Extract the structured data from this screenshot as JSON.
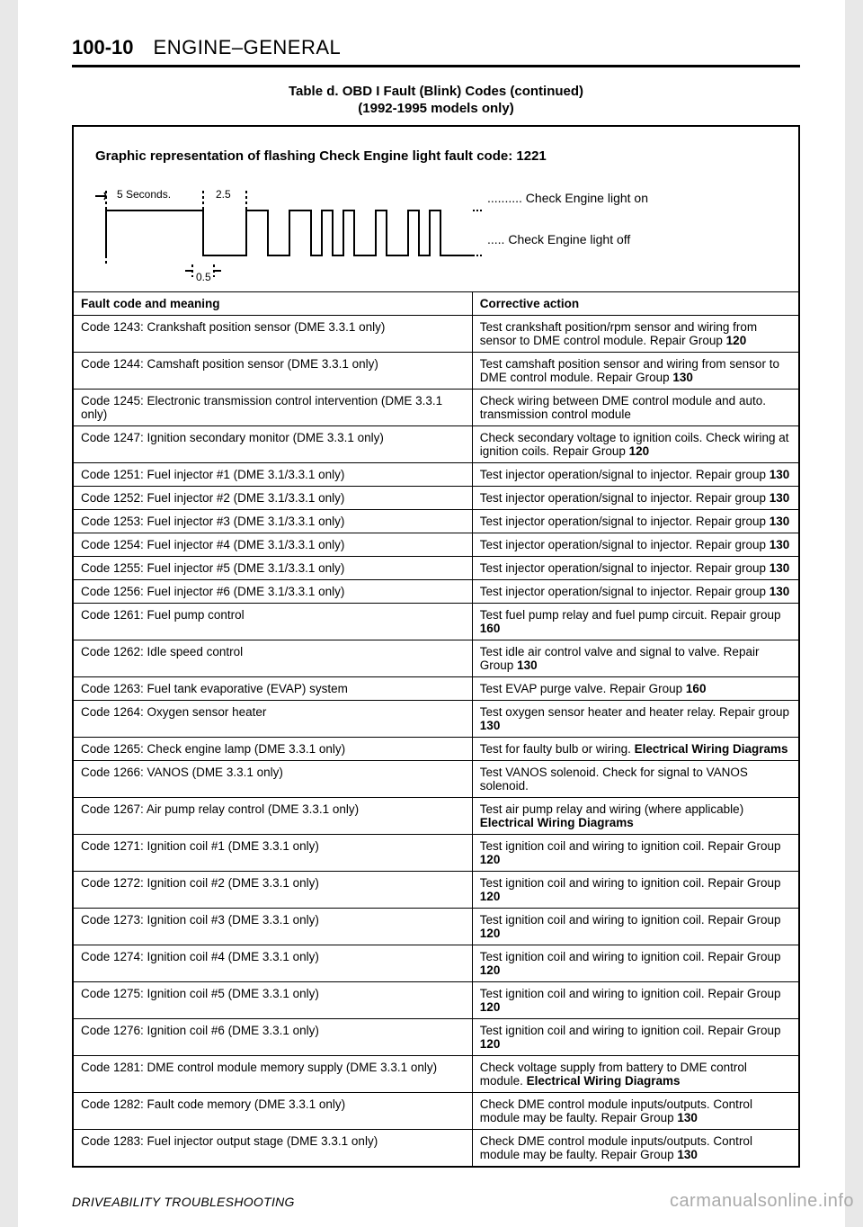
{
  "header": {
    "page_number": "100-10",
    "section": "ENGINE–GENERAL"
  },
  "table_header": {
    "title": "Table d. OBD I Fault (Blink) Codes (continued)",
    "subtitle": "(1992-1995 models only)"
  },
  "graphic": {
    "title": "Graphic representation of flashing Check Engine light fault code: 1221",
    "label_5s": "5 Seconds.",
    "label_2_5": "2.5",
    "label_0_5": "0.5",
    "legend_on": "Check Engine light on",
    "legend_off": "Check Engine light off"
  },
  "columns": {
    "fault": "Fault code and meaning",
    "action": "Corrective action"
  },
  "rows": [
    {
      "fault": "Code 1243: Crankshaft position sensor (DME 3.3.1 only)",
      "action": "Test crankshaft position/rpm sensor and wiring from sensor to DME control module. Repair Group <b>120</b>"
    },
    {
      "fault": "Code 1244: Camshaft position sensor (DME 3.3.1 only)",
      "action": "Test camshaft position sensor and wiring from sensor to DME control module. Repair Group <b>130</b>"
    },
    {
      "fault": "Code 1245: Electronic transmission control intervention (DME 3.3.1 only)",
      "action": "Check wiring between DME control module and auto. transmission control module"
    },
    {
      "fault": "Code 1247: Ignition secondary monitor (DME 3.3.1 only)",
      "action": "Check secondary voltage to ignition coils. Check wiring at ignition coils. Repair Group <b>120</b>"
    },
    {
      "fault": "Code 1251: Fuel injector #1 (DME 3.1/3.3.1 only)",
      "action": "Test injector operation/signal to injector. Repair group <b>130</b>"
    },
    {
      "fault": "Code 1252: Fuel injector #2 (DME 3.1/3.3.1 only)",
      "action": "Test injector operation/signal to injector. Repair group <b>130</b>"
    },
    {
      "fault": "Code 1253: Fuel injector #3 (DME 3.1/3.3.1 only)",
      "action": "Test injector operation/signal to injector. Repair group <b>130</b>"
    },
    {
      "fault": "Code 1254: Fuel injector #4 (DME 3.1/3.3.1 only)",
      "action": "Test injector operation/signal to injector. Repair group <b>130</b>"
    },
    {
      "fault": "Code 1255: Fuel injector #5 (DME 3.1/3.3.1 only)",
      "action": "Test injector operation/signal to injector. Repair group <b>130</b>"
    },
    {
      "fault": "Code 1256: Fuel injector #6 (DME 3.1/3.3.1 only)",
      "action": "Test injector operation/signal to injector. Repair group <b>130</b>"
    },
    {
      "fault": "Code 1261: Fuel pump control",
      "action": "Test fuel pump relay and fuel pump circuit. Repair group <b>160</b>"
    },
    {
      "fault": "Code 1262: Idle speed control",
      "action": "Test idle air control valve and signal to valve. Repair Group <b>130</b>"
    },
    {
      "fault": "Code 1263: Fuel tank evaporative (EVAP) system",
      "action": "Test EVAP purge valve. Repair Group <b>160</b>"
    },
    {
      "fault": "Code 1264: Oxygen sensor heater",
      "action": "Test oxygen sensor heater and heater relay. Repair group <b>130</b>"
    },
    {
      "fault": "Code 1265: Check engine lamp (DME 3.3.1 only)",
      "action": "Test for faulty bulb or wiring. <b>Electrical Wiring Diagrams</b>"
    },
    {
      "fault": "Code 1266: VANOS (DME 3.3.1 only)",
      "action": "Test VANOS solenoid. Check for signal to VANOS solenoid."
    },
    {
      "fault": "Code 1267: Air pump relay control (DME 3.3.1 only)",
      "action": "Test air pump relay and wiring (where applicable) <b>Electrical Wiring Diagrams</b>"
    },
    {
      "fault": "Code 1271: Ignition coil #1 (DME 3.3.1 only)",
      "action": "Test ignition coil and wiring to ignition coil. Repair Group <b>120</b>"
    },
    {
      "fault": "Code 1272: Ignition coil #2 (DME 3.3.1 only)",
      "action": "Test ignition coil and wiring to ignition coil. Repair Group <b>120</b>"
    },
    {
      "fault": "Code 1273: Ignition coil #3 (DME 3.3.1 only)",
      "action": "Test ignition coil and wiring to ignition coil. Repair Group <b>120</b>"
    },
    {
      "fault": "Code 1274: Ignition coil #4 (DME 3.3.1 only)",
      "action": "Test ignition coil and wiring to ignition coil. Repair Group <b>120</b>"
    },
    {
      "fault": "Code 1275: Ignition coil #5 (DME 3.3.1 only)",
      "action": "Test ignition coil and wiring to ignition coil. Repair Group <b>120</b>"
    },
    {
      "fault": "Code 1276: Ignition coil #6 (DME 3.3.1 only)",
      "action": "Test ignition coil and wiring to ignition coil. Repair Group <b>120</b>"
    },
    {
      "fault": "Code 1281: DME control module memory supply (DME 3.3.1 only)",
      "action": "Check voltage supply from battery to DME control module. <b>Electrical Wiring Diagrams</b>"
    },
    {
      "fault": "Code 1282: Fault code memory (DME 3.3.1 only)",
      "action": "Check DME control module inputs/outputs. Control module may be faulty. Repair Group <b>130</b>"
    },
    {
      "fault": "Code 1283: Fuel injector output stage (DME 3.3.1 only)",
      "action": "Check DME control module inputs/outputs. Control module may be faulty. Repair Group <b>130</b>"
    }
  ],
  "footer": "DRIVEABILITY TROUBLESHOOTING",
  "watermark": "carmanualsonline.info",
  "diagram_style": {
    "stroke": "#000",
    "stroke_width": 2,
    "dash": "3,3",
    "font_size": 12
  }
}
